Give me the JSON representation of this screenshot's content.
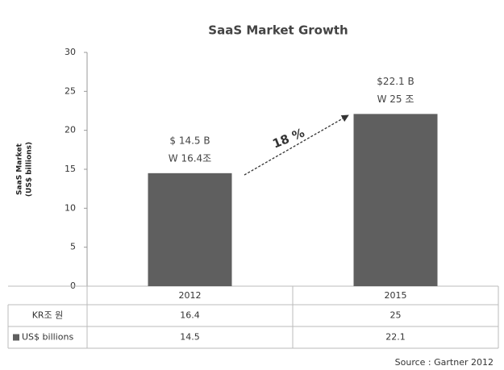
{
  "chart_data": {
    "type": "bar",
    "title": "SaaS Market Growth",
    "y_label": [
      "SaaS Market",
      "(US$ billions)"
    ],
    "categories": [
      "2012",
      "2015"
    ],
    "values": [
      14.5,
      22.1
    ],
    "value_labels": [
      "$ 14.5 B",
      "$22.1 B"
    ],
    "krw_labels": [
      "W 16.4조",
      "W 25 조"
    ],
    "color": "#5f5f5f",
    "ylim": [
      0,
      30
    ],
    "yticks": [
      0,
      5,
      10,
      15,
      20,
      25,
      30
    ],
    "annotation": "18 %",
    "table": {
      "rows": [
        {
          "label": "KR조 원",
          "values": [
            16.4,
            25
          ]
        },
        {
          "label": "US$ billions",
          "values": [
            14.5,
            22.1
          ]
        }
      ]
    },
    "source": "Source : Gartner 2012"
  }
}
